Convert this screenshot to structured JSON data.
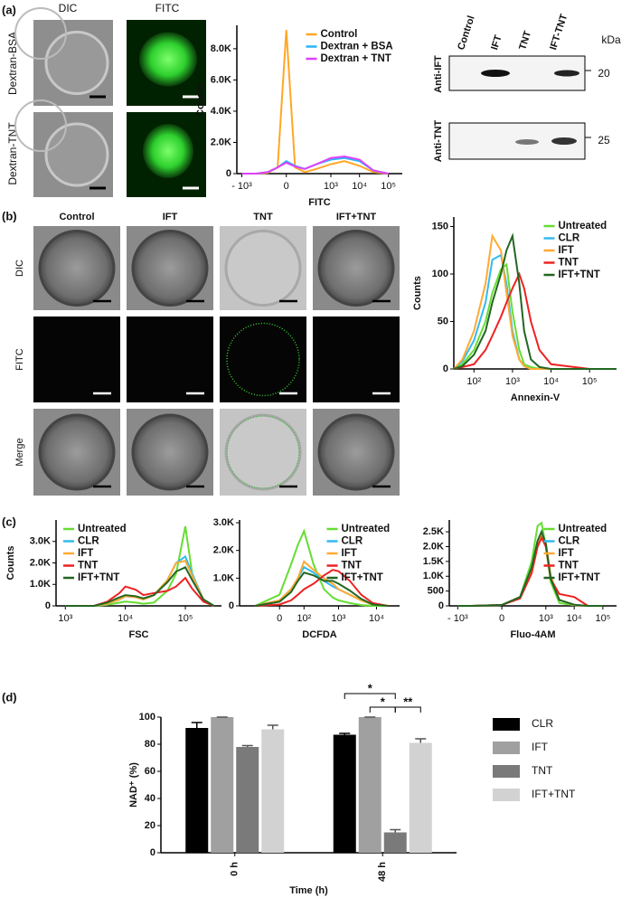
{
  "panel_labels": [
    "(a)",
    "(b)",
    "(c)",
    "(d)"
  ],
  "microscopy_a": {
    "columns": [
      "DIC",
      "FITC"
    ],
    "rows": [
      "Dextran-BSA",
      "Dextran-TNT"
    ]
  },
  "western_blot": {
    "lanes": [
      "Control",
      "IFT",
      "TNT",
      "IFT-TNT"
    ],
    "unit": "kDa",
    "rows": [
      {
        "label": "Anti-IFT",
        "size": 20
      },
      {
        "label": "Anti-TNT",
        "size": 25
      }
    ]
  },
  "microscopy_b": {
    "columns": [
      "Control",
      "IFT",
      "TNT",
      "IFT+TNT"
    ],
    "rows": [
      "DIC",
      "FITC",
      "Merge"
    ]
  },
  "chart_data": [
    {
      "type": "line",
      "xscale": "symlog",
      "xlabel": "FITC",
      "ylabel": "Counts",
      "legend": "upper right",
      "x": [
        -1000,
        -300,
        -100,
        -30,
        0,
        30,
        100,
        300,
        1000,
        3000,
        10000,
        30000,
        100000
      ],
      "xlim": [
        -1500,
        300000
      ],
      "ylim": [
        0,
        9500
      ],
      "xticks": [
        {
          "value": -1000,
          "label": "- 10³"
        },
        0,
        {
          "value": 1000,
          "label": "10³"
        },
        {
          "value": 10000,
          "label": "10⁴"
        },
        {
          "value": 100000,
          "label": "10⁵"
        }
      ],
      "yticks": [
        0,
        {
          "value": 2000,
          "label": "2.0K"
        },
        {
          "value": 4000,
          "label": "4.0K"
        },
        {
          "value": 6000,
          "label": "6.0K"
        },
        {
          "value": 8000,
          "label": "8.0K"
        }
      ],
      "series": [
        {
          "name": "Control",
          "color": "#ffa726",
          "values": [
            0,
            0,
            50,
            400,
            9200,
            400,
            100,
            300,
            600,
            800,
            500,
            100,
            0
          ]
        },
        {
          "name": "Dextran + BSA",
          "color": "#29b6f6",
          "values": [
            0,
            0,
            100,
            400,
            800,
            500,
            300,
            600,
            900,
            1000,
            800,
            200,
            0
          ]
        },
        {
          "name": "Dextran + TNT",
          "color": "#e040fb",
          "values": [
            0,
            0,
            100,
            400,
            700,
            450,
            300,
            600,
            1000,
            1100,
            900,
            200,
            0
          ]
        }
      ]
    },
    {
      "type": "line",
      "xscale": "log",
      "xlabel": "Annexin-V",
      "ylabel": "Counts",
      "legend": "upper right",
      "x": [
        30,
        50,
        100,
        200,
        300,
        500,
        700,
        1000,
        1500,
        2000,
        3000,
        5000,
        10000,
        100000,
        500000
      ],
      "xlim": [
        30,
        500000
      ],
      "ylim": [
        0,
        160
      ],
      "xticks": [
        {
          "value": 100,
          "label": "10²"
        },
        {
          "value": 1000,
          "label": "10³"
        },
        {
          "value": 10000,
          "label": "10⁴"
        },
        {
          "value": 100000,
          "label": "10⁵"
        }
      ],
      "yticks": [
        0,
        50,
        100,
        150
      ],
      "series": [
        {
          "name": "Untreated",
          "color": "#66dd33",
          "values": [
            0,
            5,
            20,
            50,
            80,
            105,
            110,
            60,
            20,
            5,
            2,
            0,
            0,
            0,
            0
          ]
        },
        {
          "name": "CLR",
          "color": "#33bbee",
          "values": [
            0,
            8,
            30,
            70,
            115,
            120,
            90,
            40,
            10,
            3,
            0,
            0,
            0,
            0,
            0
          ]
        },
        {
          "name": "IFT",
          "color": "#ffaa33",
          "values": [
            0,
            10,
            40,
            90,
            140,
            125,
            80,
            35,
            10,
            3,
            0,
            0,
            0,
            0,
            0
          ]
        },
        {
          "name": "TNT",
          "color": "#ee2222",
          "values": [
            0,
            2,
            5,
            20,
            35,
            55,
            70,
            85,
            100,
            85,
            50,
            20,
            5,
            0,
            0
          ]
        },
        {
          "name": "IFT+TNT",
          "color": "#226622",
          "values": [
            0,
            3,
            15,
            40,
            70,
            100,
            125,
            140,
            90,
            40,
            10,
            2,
            0,
            0,
            0
          ]
        }
      ]
    },
    {
      "type": "line",
      "xscale": "log",
      "xlabel": "FSC",
      "ylabel": "Counts",
      "legend": "upper left",
      "x": [
        1000,
        3000,
        5000,
        8000,
        10000,
        15000,
        20000,
        30000,
        50000,
        70000,
        100000,
        130000,
        200000,
        300000
      ],
      "xlim": [
        700,
        400000
      ],
      "ylim": [
        0,
        4000
      ],
      "xticks": [
        {
          "value": 1000,
          "label": "10³"
        },
        {
          "value": 10000,
          "label": "10⁴"
        },
        {
          "value": 100000,
          "label": "10⁵"
        }
      ],
      "yticks": [
        0,
        {
          "value": 1000,
          "label": "1.0K"
        },
        {
          "value": 2000,
          "label": "2.0K"
        },
        {
          "value": 3000,
          "label": "3.0K"
        }
      ],
      "series": [
        {
          "name": "Untreated",
          "color": "#66dd33",
          "values": [
            0,
            0,
            50,
            150,
            200,
            150,
            100,
            150,
            700,
            1500,
            3700,
            1500,
            200,
            0
          ]
        },
        {
          "name": "CLR",
          "color": "#33bbee",
          "values": [
            0,
            0,
            100,
            300,
            450,
            400,
            300,
            500,
            1200,
            2000,
            2300,
            1500,
            300,
            0
          ]
        },
        {
          "name": "IFT",
          "color": "#ffaa33",
          "values": [
            0,
            0,
            100,
            300,
            450,
            400,
            300,
            500,
            1200,
            2000,
            2100,
            1400,
            300,
            0
          ]
        },
        {
          "name": "TNT",
          "color": "#ee2222",
          "values": [
            0,
            0,
            200,
            600,
            900,
            750,
            500,
            600,
            700,
            900,
            1300,
            800,
            200,
            0
          ]
        },
        {
          "name": "IFT+TNT",
          "color": "#226622",
          "values": [
            0,
            0,
            150,
            400,
            500,
            450,
            350,
            500,
            1100,
            1600,
            1800,
            1200,
            300,
            0
          ]
        }
      ]
    },
    {
      "type": "line",
      "xscale": "symlog",
      "xlabel": "DCFDA",
      "legend": "upper right",
      "x": [
        -100,
        0,
        30,
        60,
        100,
        200,
        400,
        700,
        1000,
        2000,
        4000,
        8000,
        20000
      ],
      "xlim": [
        -300,
        40000
      ],
      "ylim": [
        0,
        3100
      ],
      "xticks": [
        0,
        {
          "value": 100,
          "label": "10²"
        },
        {
          "value": 1000,
          "label": "10³"
        },
        {
          "value": 10000,
          "label": "10⁴"
        }
      ],
      "yticks": [
        0,
        {
          "value": 1000,
          "label": "1.0K"
        },
        {
          "value": 2000,
          "label": "2.0K"
        },
        {
          "value": 3000,
          "label": "3.0K"
        }
      ],
      "series": [
        {
          "name": "Untreated",
          "color": "#66dd33",
          "values": [
            0,
            400,
            1500,
            2200,
            2700,
            1500,
            600,
            300,
            200,
            100,
            30,
            0,
            0
          ]
        },
        {
          "name": "CLR",
          "color": "#33bbee",
          "values": [
            0,
            200,
            600,
            1000,
            1400,
            1200,
            900,
            700,
            600,
            400,
            200,
            50,
            0
          ]
        },
        {
          "name": "IFT",
          "color": "#ffaa33",
          "values": [
            0,
            200,
            600,
            1000,
            1600,
            1300,
            1000,
            800,
            600,
            400,
            200,
            50,
            0
          ]
        },
        {
          "name": "TNT",
          "color": "#ee2222",
          "values": [
            0,
            50,
            200,
            400,
            600,
            800,
            1100,
            1300,
            1250,
            900,
            400,
            100,
            0
          ]
        },
        {
          "name": "IFT+TNT",
          "color": "#226622",
          "values": [
            0,
            150,
            500,
            900,
            1200,
            1100,
            900,
            900,
            800,
            550,
            250,
            50,
            0
          ]
        }
      ]
    },
    {
      "type": "line",
      "xscale": "symlog",
      "xlabel": "Fluo-4AM",
      "legend": "upper right",
      "x": [
        -1000,
        -300,
        0,
        100,
        300,
        500,
        700,
        1000,
        1500,
        3000,
        10000,
        30000,
        100000
      ],
      "xlim": [
        -2000,
        300000
      ],
      "ylim": [
        0,
        2900
      ],
      "xticks": [
        {
          "value": -1000,
          "label": "- 10³"
        },
        0,
        {
          "value": 1000,
          "label": "10³"
        },
        {
          "value": 10000,
          "label": "10⁴"
        },
        {
          "value": 100000,
          "label": "10⁵"
        }
      ],
      "yticks": [
        0,
        500,
        {
          "value": 1000,
          "label": "1.0K"
        },
        {
          "value": 1500,
          "label": "1.5K"
        },
        {
          "value": 2000,
          "label": "2.0K"
        },
        {
          "value": 2500,
          "label": "2.5K"
        }
      ],
      "series": [
        {
          "name": "Untreated",
          "color": "#66dd33",
          "values": [
            0,
            0,
            30,
            300,
            1500,
            2700,
            2800,
            2000,
            800,
            100,
            20,
            0,
            0
          ]
        },
        {
          "name": "CLR",
          "color": "#33bbee",
          "values": [
            0,
            0,
            30,
            300,
            1300,
            2200,
            2500,
            2100,
            900,
            200,
            30,
            0,
            0
          ]
        },
        {
          "name": "IFT",
          "color": "#ffaa33",
          "values": [
            0,
            0,
            30,
            300,
            1200,
            2100,
            2400,
            2100,
            1000,
            200,
            30,
            0,
            0
          ]
        },
        {
          "name": "TNT",
          "color": "#ee2222",
          "values": [
            0,
            0,
            30,
            250,
            1100,
            2000,
            2300,
            2000,
            900,
            400,
            300,
            0,
            0
          ]
        },
        {
          "name": "IFT+TNT",
          "color": "#226622",
          "values": [
            0,
            0,
            30,
            300,
            1300,
            2200,
            2500,
            2100,
            900,
            200,
            40,
            0,
            0
          ]
        }
      ]
    },
    {
      "type": "bar",
      "xlabel": "Time (h)",
      "ylabel": "NAD⁺ (%)",
      "legend": "right",
      "categories": [
        "0 h",
        "48 h"
      ],
      "ylim": [
        0,
        100
      ],
      "yticks": [
        0,
        20,
        40,
        60,
        80,
        100
      ],
      "annotations": [
        "*",
        "*",
        "**"
      ],
      "series": [
        {
          "name": "CLR",
          "color": "#000000",
          "values": [
            92,
            87
          ],
          "errors": [
            4,
            1
          ]
        },
        {
          "name": "IFT",
          "color": "#a0a0a0",
          "values": [
            100,
            100
          ],
          "errors": [
            0,
            0
          ]
        },
        {
          "name": "TNT",
          "color": "#7a7a7a",
          "values": [
            78,
            15
          ],
          "errors": [
            1,
            2
          ]
        },
        {
          "name": "IFT+TNT",
          "color": "#d2d2d2",
          "values": [
            91,
            81
          ],
          "errors": [
            3,
            3
          ]
        }
      ]
    }
  ]
}
